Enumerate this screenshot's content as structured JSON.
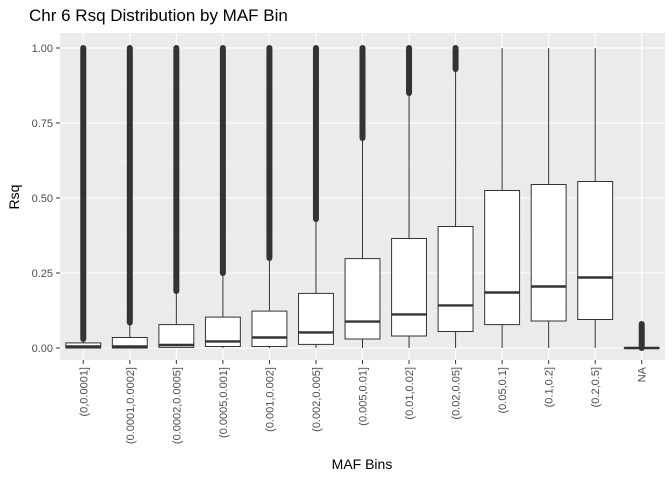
{
  "chart_data": {
    "type": "box",
    "title": "Chr 6 Rsq Distribution by MAF Bin",
    "xlabel": "MAF Bins",
    "ylabel": "Rsq",
    "ylim": [
      -0.04,
      1.05
    ],
    "yticks": [
      0.0,
      0.25,
      0.5,
      0.75,
      1.0
    ],
    "ytick_labels": [
      "0.00",
      "0.25",
      "0.50",
      "0.75",
      "1.00"
    ],
    "grid": true,
    "categories": [
      "(0,0.0001]",
      "(0.0001,0.0002]",
      "(0.0002,0.0005]",
      "(0.0005,0.001]",
      "(0.001,0.002]",
      "(0.002,0.005]",
      "(0.005,0.01]",
      "(0.01,0.02]",
      "(0.02,0.05]",
      "(0.05,0.1]",
      "(0.1,0.2]",
      "(0.2,0.5]",
      "NA"
    ],
    "boxes": [
      {
        "lower_whisker": 0.0,
        "q1": 0.0,
        "median": 0.005,
        "q3": 0.017,
        "upper_whisker": 0.03,
        "outliers_from": 0.03,
        "outliers_to": 1.0
      },
      {
        "lower_whisker": 0.0,
        "q1": 0.0,
        "median": 0.005,
        "q3": 0.035,
        "upper_whisker": 0.085,
        "outliers_from": 0.085,
        "outliers_to": 1.0
      },
      {
        "lower_whisker": 0.0,
        "q1": 0.002,
        "median": 0.01,
        "q3": 0.078,
        "upper_whisker": 0.19,
        "outliers_from": 0.19,
        "outliers_to": 1.0
      },
      {
        "lower_whisker": 0.0,
        "q1": 0.005,
        "median": 0.022,
        "q3": 0.103,
        "upper_whisker": 0.25,
        "outliers_from": 0.25,
        "outliers_to": 1.0
      },
      {
        "lower_whisker": 0.0,
        "q1": 0.005,
        "median": 0.035,
        "q3": 0.123,
        "upper_whisker": 0.3,
        "outliers_from": 0.3,
        "outliers_to": 1.0
      },
      {
        "lower_whisker": 0.0,
        "q1": 0.012,
        "median": 0.052,
        "q3": 0.182,
        "upper_whisker": 0.43,
        "outliers_from": 0.43,
        "outliers_to": 1.0
      },
      {
        "lower_whisker": 0.0,
        "q1": 0.03,
        "median": 0.088,
        "q3": 0.298,
        "upper_whisker": 0.7,
        "outliers_from": 0.7,
        "outliers_to": 1.0
      },
      {
        "lower_whisker": 0.0,
        "q1": 0.04,
        "median": 0.112,
        "q3": 0.365,
        "upper_whisker": 0.85,
        "outliers_from": 0.85,
        "outliers_to": 1.0
      },
      {
        "lower_whisker": 0.0,
        "q1": 0.055,
        "median": 0.142,
        "q3": 0.405,
        "upper_whisker": 0.93,
        "outliers_from": 0.93,
        "outliers_to": 1.0
      },
      {
        "lower_whisker": 0.0,
        "q1": 0.078,
        "median": 0.185,
        "q3": 0.525,
        "upper_whisker": 1.0
      },
      {
        "lower_whisker": 0.0,
        "q1": 0.09,
        "median": 0.205,
        "q3": 0.545,
        "upper_whisker": 1.0
      },
      {
        "lower_whisker": 0.0,
        "q1": 0.095,
        "median": 0.235,
        "q3": 0.555,
        "upper_whisker": 1.0
      },
      {
        "lower_whisker": 0.0,
        "q1": 0.0,
        "median": 0.0,
        "q3": 0.0,
        "upper_whisker": 0.0,
        "outliers_from": 0.0,
        "outliers_to": 0.08
      }
    ],
    "colors": {
      "panel": "#ebebeb",
      "grid_major": "#ffffff",
      "grid_minor": "#f5f5f5",
      "box_fill": "#ffffff",
      "box_line": "#333333",
      "outlier": "#333333"
    }
  }
}
